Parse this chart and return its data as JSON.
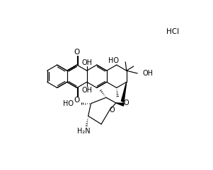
{
  "bg": "#ffffff",
  "lc": "#000000",
  "lw": 0.85,
  "hcl": "HCl",
  "O_label": "O",
  "OH_label": "OH",
  "HO_label": "HO",
  "NH2_label": "H₂N"
}
